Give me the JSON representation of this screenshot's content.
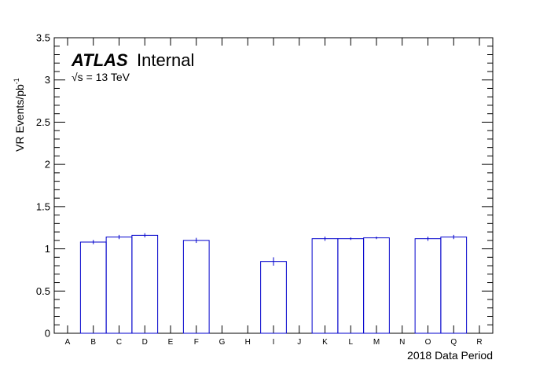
{
  "chart_data": {
    "type": "bar",
    "style": "histogram-step",
    "categories": [
      "A",
      "B",
      "C",
      "D",
      "E",
      "F",
      "G",
      "H",
      "I",
      "J",
      "K",
      "L",
      "M",
      "N",
      "O",
      "Q",
      "R"
    ],
    "values": [
      0,
      1.08,
      1.14,
      1.16,
      0,
      1.1,
      0,
      0,
      0.85,
      0,
      1.12,
      1.12,
      1.13,
      0,
      1.12,
      1.14,
      0
    ],
    "errors": [
      0,
      0.025,
      0.025,
      0.025,
      0,
      0.03,
      0,
      0,
      0.05,
      0,
      0.025,
      0.015,
      0.015,
      0,
      0.025,
      0.025,
      0
    ],
    "xlabel": "2018 Data Period",
    "ylabel": "VR Events/pb",
    "ylabel_superscript": "-1",
    "ylim": [
      0,
      3.5
    ],
    "yticks": [
      0,
      0.5,
      1,
      1.5,
      2,
      2.5,
      3,
      3.5
    ],
    "ytick_labels": [
      "0",
      "0.5",
      "1",
      "1.5",
      "2",
      "2.5",
      "3",
      "3.5"
    ],
    "grid": false,
    "line_color": "#0000cc"
  },
  "annotation": {
    "atlas": "ATLAS",
    "internal": "Internal",
    "energy": "√s = 13 TeV"
  }
}
